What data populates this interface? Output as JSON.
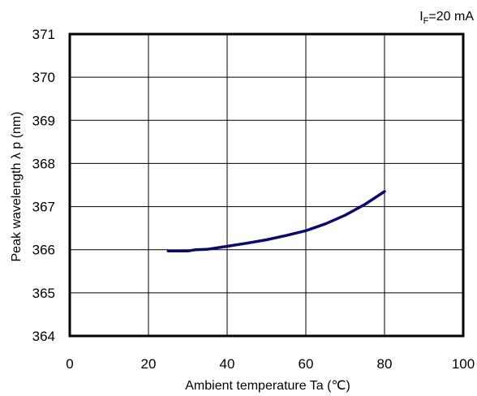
{
  "chart_data": {
    "type": "line",
    "annotation": {
      "base": "I",
      "sub": "F",
      "rest": "=20 mA"
    },
    "xlabel": "Ambient temperature Ta (℃)",
    "ylabel": "Peak wavelength λ p (nm)",
    "xlim": [
      0,
      100
    ],
    "ylim": [
      364,
      371
    ],
    "x_ticks": [
      "0",
      "20",
      "40",
      "60",
      "80",
      "100"
    ],
    "y_ticks": [
      "364",
      "365",
      "366",
      "367",
      "368",
      "369",
      "370",
      "371"
    ],
    "grid": true,
    "line_color": "#0a0a6e",
    "series": [
      {
        "points": [
          [
            25,
            365.97
          ],
          [
            30,
            365.97
          ],
          [
            32,
            366.0
          ],
          [
            35,
            366.01
          ],
          [
            40,
            366.08
          ],
          [
            45,
            366.15
          ],
          [
            50,
            366.23
          ],
          [
            55,
            366.33
          ],
          [
            60,
            366.44
          ],
          [
            65,
            366.6
          ],
          [
            70,
            366.8
          ],
          [
            75,
            367.05
          ],
          [
            80,
            367.35
          ]
        ]
      }
    ]
  }
}
